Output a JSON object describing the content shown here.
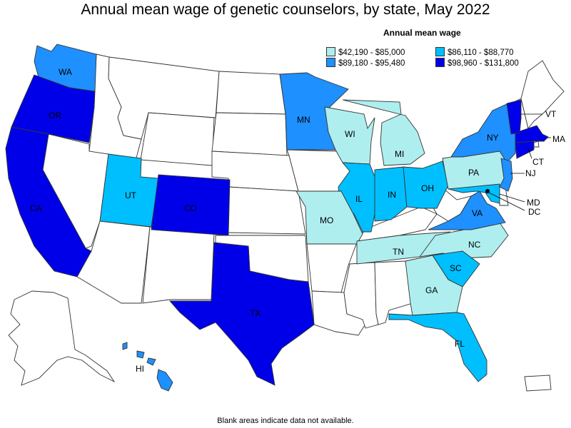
{
  "title": "Annual mean wage of genetic counselors, by state, May 2022",
  "legend": {
    "title": "Annual mean wage",
    "items": [
      {
        "label": "$42,190 - $85,000",
        "color": "#afeeee"
      },
      {
        "label": "$86,110 - $88,770",
        "color": "#00bfff"
      },
      {
        "label": "$89,180 - $95,480",
        "color": "#1e90ff"
      },
      {
        "label": "$98,960 - $131,800",
        "color": "#0000e8"
      }
    ]
  },
  "footnote": "Blank areas indicate data not available.",
  "no_data_color": "#ffffff",
  "states": {
    "WA": {
      "label": "WA",
      "bin": 2
    },
    "OR": {
      "label": "OR",
      "bin": 3
    },
    "CA": {
      "label": "CA",
      "bin": 3
    },
    "UT": {
      "label": "UT",
      "bin": 1
    },
    "CO": {
      "label": "CO",
      "bin": 3
    },
    "TX": {
      "label": "TX",
      "bin": 3
    },
    "MN": {
      "label": "MN",
      "bin": 2
    },
    "WI": {
      "label": "WI",
      "bin": 0
    },
    "MI": {
      "label": "MI",
      "bin": 0
    },
    "IL": {
      "label": "IL",
      "bin": 1
    },
    "IN": {
      "label": "IN",
      "bin": 1
    },
    "OH": {
      "label": "OH",
      "bin": 1
    },
    "MO": {
      "label": "MO",
      "bin": 0
    },
    "TN": {
      "label": "TN",
      "bin": 0
    },
    "NC": {
      "label": "NC",
      "bin": 0
    },
    "SC": {
      "label": "SC",
      "bin": 1
    },
    "GA": {
      "label": "GA",
      "bin": 0
    },
    "FL": {
      "label": "FL",
      "bin": 1
    },
    "VA": {
      "label": "VA",
      "bin": 2
    },
    "PA": {
      "label": "PA",
      "bin": 0
    },
    "NY": {
      "label": "NY",
      "bin": 2
    },
    "NJ": {
      "label": "NJ",
      "bin": 2
    },
    "MD": {
      "label": "MD",
      "bin": 1
    },
    "DC": {
      "label": "DC",
      "bin": 3
    },
    "CT": {
      "label": "CT",
      "bin": 3
    },
    "MA": {
      "label": "MA",
      "bin": 3
    },
    "VT": {
      "label": "VT",
      "bin": 3
    },
    "HI": {
      "label": "HI",
      "bin": 2
    }
  }
}
